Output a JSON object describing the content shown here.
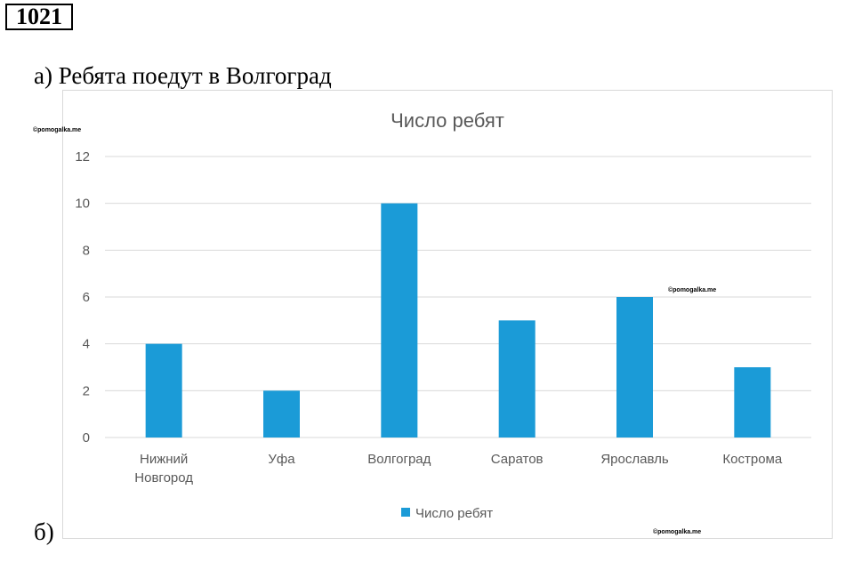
{
  "problem": {
    "number": "1021",
    "part_a": "а) Ребята поедут в Волгоград",
    "part_b": "б)"
  },
  "watermarks": [
    "©pomogalka.me",
    "©pomogalka.me",
    "©pomogalka.me"
  ],
  "colors": {
    "bar": "#1b9bd7",
    "grid": "#d9d9d9",
    "text": "#595959"
  },
  "chart_data": {
    "type": "bar",
    "title": "Число ребят",
    "categories": [
      [
        "Нижний",
        "Новгород"
      ],
      [
        "Уфа"
      ],
      [
        "Волгоград"
      ],
      [
        "Саратов"
      ],
      [
        "Ярославль"
      ],
      [
        "Кострома"
      ]
    ],
    "series": [
      {
        "name": "Число ребят",
        "values": [
          4,
          2,
          10,
          5,
          6,
          3
        ]
      }
    ],
    "ylim": [
      0,
      12
    ],
    "yticks": [
      0,
      2,
      4,
      6,
      8,
      10,
      12
    ],
    "grid": true,
    "legend_position": "bottom"
  }
}
